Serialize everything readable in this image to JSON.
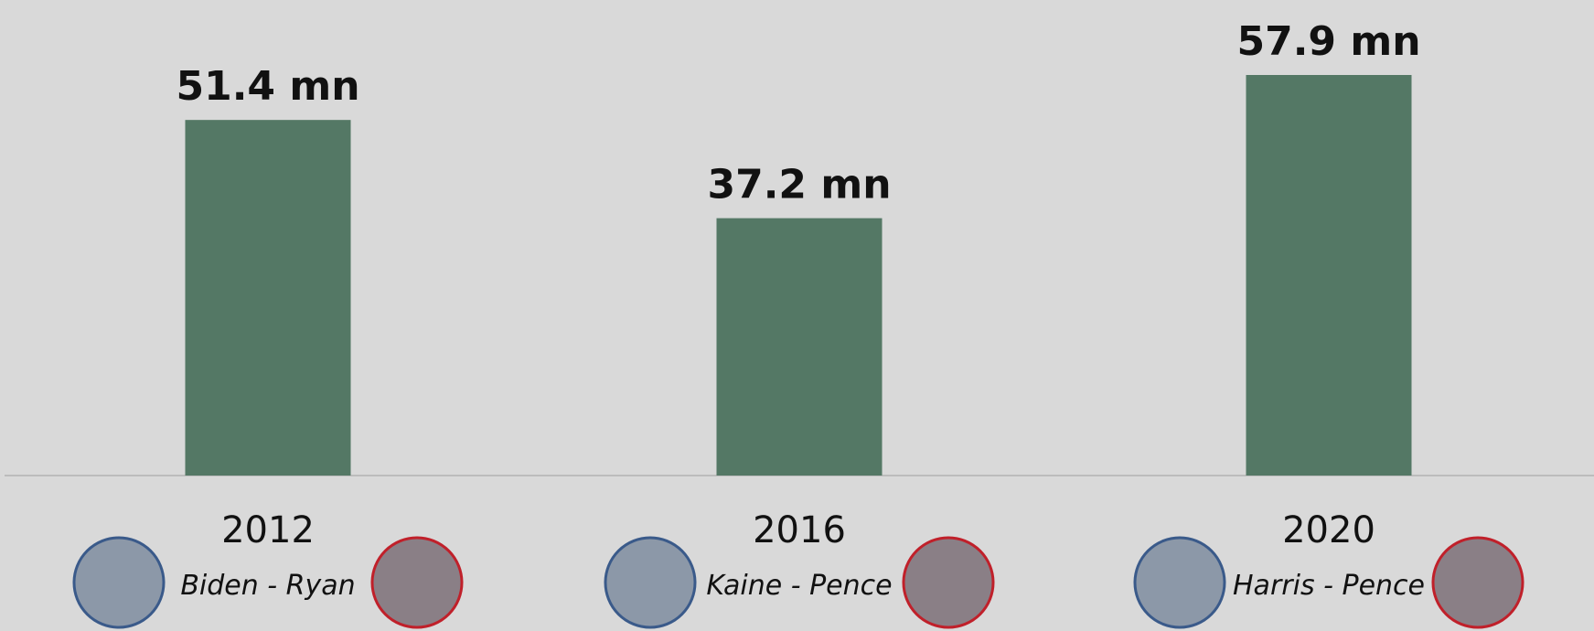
{
  "chart_data": {
    "type": "bar",
    "categories": [
      "2012",
      "2016",
      "2020"
    ],
    "values": [
      51.4,
      37.2,
      57.9
    ],
    "value_labels": [
      "51.4 mn",
      "37.2 mn",
      "57.9 mn"
    ],
    "matchups": [
      "Biden - Ryan",
      "Kaine - Pence",
      "Harris - Pence"
    ],
    "color": "#547865"
  }
}
